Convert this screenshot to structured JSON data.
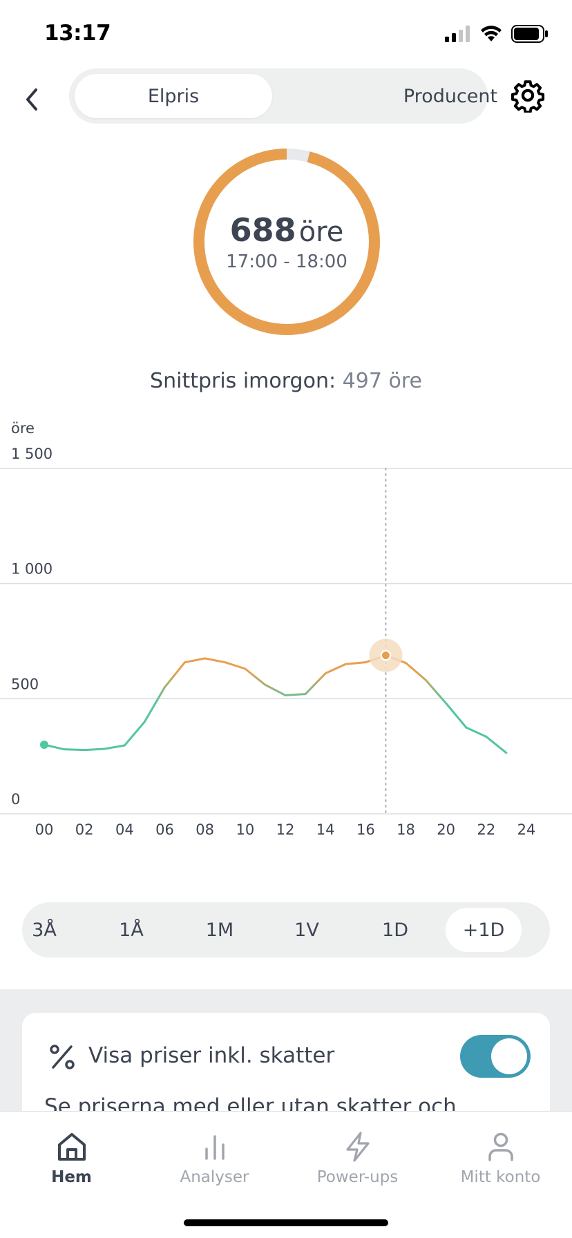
{
  "status": {
    "time": "13:17"
  },
  "header": {
    "tabs": [
      {
        "label": "Elpris",
        "active": true
      },
      {
        "label": "Producent",
        "active": false
      }
    ]
  },
  "gauge": {
    "value": "688",
    "unit": "öre",
    "time_range": "17:00 - 18:00",
    "fraction": 0.96
  },
  "average": {
    "label": "Snittpris imorgon:",
    "value": "497 öre"
  },
  "chart_data": {
    "type": "line",
    "ylabel": "öre",
    "ylim": [
      0,
      1500
    ],
    "yticks": [
      "1 500",
      "1 000",
      "500",
      "0"
    ],
    "ytick_values": [
      1500,
      1000,
      500,
      0
    ],
    "xlim": [
      0,
      24
    ],
    "xticks": [
      "00",
      "02",
      "04",
      "06",
      "08",
      "10",
      "12",
      "14",
      "16",
      "18",
      "20",
      "22",
      "24"
    ],
    "x": [
      0,
      1,
      2,
      3,
      4,
      5,
      6,
      7,
      8,
      9,
      10,
      11,
      12,
      13,
      14,
      15,
      16,
      17,
      18,
      19,
      20,
      21,
      22,
      23
    ],
    "values": [
      300,
      280,
      277,
      282,
      297,
      400,
      550,
      658,
      675,
      658,
      630,
      560,
      515,
      520,
      610,
      650,
      658,
      688,
      655,
      580,
      480,
      375,
      335,
      265
    ],
    "selected_x": 17,
    "colors": {
      "low": "#52c6a0",
      "high": "#e79f4f"
    }
  },
  "range_selector": {
    "options": [
      "3Å",
      "1Å",
      "1M",
      "1V",
      "1D",
      "+1D"
    ],
    "active_index": 5
  },
  "tax_card": {
    "title": "Visa priser inkl. skatter",
    "description": "Se priserna med eller utan skatter och",
    "toggle_on": true
  },
  "tabbar": {
    "tabs": [
      {
        "label": "Hem",
        "icon": "home-icon",
        "active": true
      },
      {
        "label": "Analyser",
        "icon": "bar-chart-icon",
        "active": false
      },
      {
        "label": "Power-ups",
        "icon": "lightning-icon",
        "active": false
      },
      {
        "label": "Mitt konto",
        "icon": "person-icon",
        "active": false
      }
    ]
  },
  "colors": {
    "accent_orange": "#e79f4f",
    "accent_teal": "#3f9bb3",
    "text": "#3d4452"
  }
}
